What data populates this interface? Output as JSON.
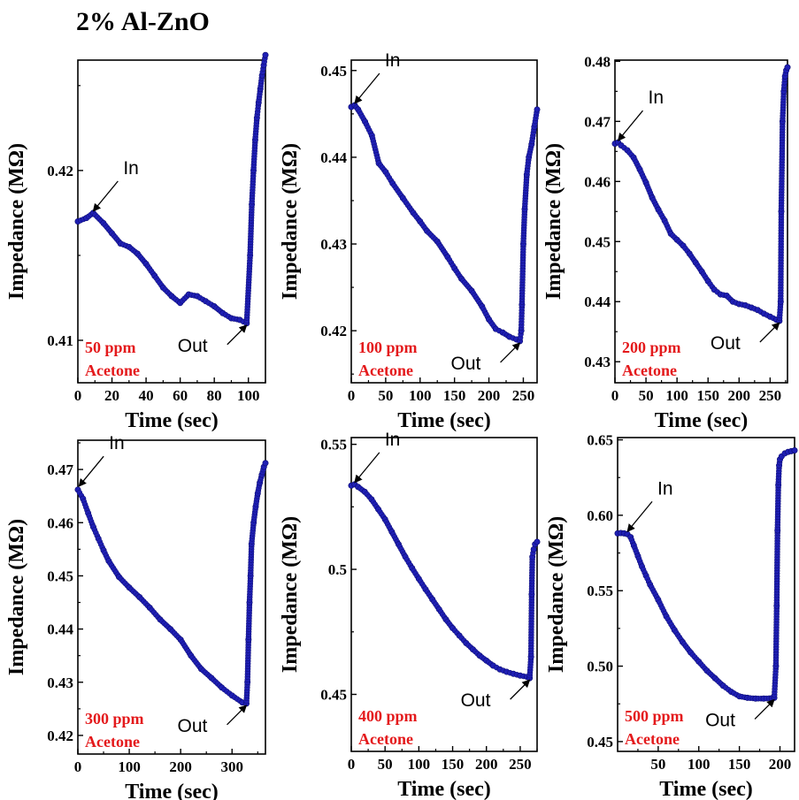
{
  "figure": {
    "title": "2% Al-ZnO"
  },
  "colors": {
    "series": "#1f1fb4",
    "condition_text": "#e41a1c"
  },
  "chart_data": [
    {
      "type": "scatter",
      "xlabel": "Time (sec)",
      "ylabel": "Impedance (MΩ)",
      "xlim": [
        0,
        110
      ],
      "ylim": [
        0.4075,
        0.4265
      ],
      "xticks": [
        0,
        20,
        40,
        60,
        80,
        100
      ],
      "xtick_labels": [
        "0",
        "20",
        "40",
        "60",
        "80",
        "100"
      ],
      "yticks": [
        0.41,
        0.42
      ],
      "ytick_labels": [
        "0.41",
        "0.42"
      ],
      "conditions": [
        "50 ppm",
        "Acetone"
      ],
      "annotations": [
        {
          "text": "In",
          "x": 9,
          "y": 0.4175
        },
        {
          "text": "Out",
          "x": 99,
          "y": 0.411
        }
      ],
      "x": [
        0,
        5,
        9,
        15,
        20,
        25,
        30,
        35,
        40,
        45,
        50,
        55,
        60,
        65,
        70,
        75,
        80,
        85,
        90,
        95,
        99,
        101,
        102,
        103,
        104,
        105,
        106,
        107,
        108,
        109,
        110
      ],
      "y": [
        0.417,
        0.4172,
        0.4175,
        0.4169,
        0.4163,
        0.4157,
        0.4155,
        0.4151,
        0.4145,
        0.4138,
        0.4131,
        0.4126,
        0.4122,
        0.4127,
        0.4126,
        0.4123,
        0.412,
        0.4116,
        0.4113,
        0.4112,
        0.411,
        0.415,
        0.418,
        0.42,
        0.4218,
        0.4231,
        0.424,
        0.4248,
        0.4256,
        0.4262,
        0.4268
      ]
    },
    {
      "type": "scatter",
      "xlabel": "Time (sec)",
      "ylabel": "Impedance (MΩ)",
      "xlim": [
        0,
        270
      ],
      "ylim": [
        0.414,
        0.4512
      ],
      "xticks": [
        0,
        50,
        100,
        150,
        200,
        250
      ],
      "xtick_labels": [
        "0",
        "50",
        "100",
        "150",
        "200",
        "250"
      ],
      "yticks": [
        0.42,
        0.43,
        0.44,
        0.45
      ],
      "ytick_labels": [
        "0.42",
        "0.43",
        "0.44",
        "0.45"
      ],
      "conditions": [
        "100 ppm",
        "Acetone"
      ],
      "annotations": [
        {
          "text": "In",
          "x": 5,
          "y": 0.446
        },
        {
          "text": "Out",
          "x": 245,
          "y": 0.4188
        }
      ],
      "x": [
        0,
        5,
        10,
        20,
        30,
        40,
        50,
        60,
        75,
        90,
        100,
        110,
        125,
        140,
        150,
        160,
        175,
        190,
        200,
        210,
        220,
        230,
        240,
        245,
        247,
        248,
        250,
        252,
        255,
        258,
        262,
        266,
        270
      ],
      "y": [
        0.4458,
        0.446,
        0.4455,
        0.4441,
        0.4425,
        0.4393,
        0.4383,
        0.437,
        0.4353,
        0.4336,
        0.4326,
        0.4315,
        0.4303,
        0.4285,
        0.4272,
        0.426,
        0.4246,
        0.4228,
        0.4213,
        0.4202,
        0.4198,
        0.4193,
        0.419,
        0.4188,
        0.42,
        0.423,
        0.43,
        0.434,
        0.438,
        0.44,
        0.4415,
        0.4435,
        0.4455
      ]
    },
    {
      "type": "scatter",
      "xlabel": "Time (sec)",
      "ylabel": "Impedance (MΩ)",
      "xlim": [
        0,
        278
      ],
      "ylim": [
        0.4265,
        0.4802
      ],
      "xticks": [
        0,
        50,
        100,
        150,
        200,
        250
      ],
      "xtick_labels": [
        "0",
        "50",
        "100",
        "150",
        "200",
        "250"
      ],
      "yticks": [
        0.43,
        0.44,
        0.45,
        0.46,
        0.47,
        0.48
      ],
      "ytick_labels": [
        "0.43",
        "0.44",
        "0.45",
        "0.46",
        "0.47",
        "0.48"
      ],
      "conditions": [
        "200 ppm",
        "Acetone"
      ],
      "annotations": [
        {
          "text": "In",
          "x": 5,
          "y": 0.4665
        },
        {
          "text": "Out",
          "x": 265,
          "y": 0.4368
        }
      ],
      "x": [
        0,
        5,
        10,
        20,
        30,
        40,
        50,
        60,
        70,
        80,
        90,
        100,
        110,
        120,
        130,
        140,
        150,
        160,
        170,
        180,
        190,
        200,
        210,
        220,
        230,
        240,
        250,
        260,
        265,
        267,
        268,
        270,
        272,
        274,
        276,
        278
      ],
      "y": [
        0.4663,
        0.4665,
        0.466,
        0.4652,
        0.464,
        0.462,
        0.4598,
        0.4573,
        0.4553,
        0.4535,
        0.4513,
        0.4503,
        0.4493,
        0.448,
        0.4465,
        0.445,
        0.4434,
        0.442,
        0.4412,
        0.441,
        0.44,
        0.4396,
        0.4394,
        0.439,
        0.4386,
        0.438,
        0.4375,
        0.437,
        0.4368,
        0.44,
        0.455,
        0.47,
        0.475,
        0.4775,
        0.4785,
        0.479
      ]
    },
    {
      "type": "scatter",
      "xlabel": "Time (sec)",
      "ylabel": "Impedance (MΩ)",
      "xlim": [
        0,
        365
      ],
      "ylim": [
        0.4165,
        0.4755
      ],
      "xticks": [
        0,
        100,
        200,
        300
      ],
      "xtick_labels": [
        "0",
        "100",
        "200",
        "300"
      ],
      "yticks": [
        0.42,
        0.43,
        0.44,
        0.45,
        0.46,
        0.47
      ],
      "ytick_labels": [
        "0.42",
        "0.43",
        "0.44",
        "0.45",
        "0.46",
        "0.47"
      ],
      "conditions": [
        "300 ppm",
        "Acetone"
      ],
      "annotations": [
        {
          "text": "In",
          "x": 2,
          "y": 0.4665
        },
        {
          "text": "Out",
          "x": 328,
          "y": 0.426
        }
      ],
      "x": [
        0,
        10,
        20,
        30,
        40,
        50,
        60,
        80,
        100,
        120,
        140,
        160,
        180,
        200,
        220,
        240,
        260,
        280,
        300,
        320,
        328,
        330,
        332,
        334,
        336,
        338,
        342,
        346,
        350,
        354,
        358,
        362,
        365
      ],
      "y": [
        0.4662,
        0.4645,
        0.4618,
        0.4592,
        0.457,
        0.4548,
        0.4528,
        0.4498,
        0.4478,
        0.446,
        0.444,
        0.4418,
        0.44,
        0.438,
        0.435,
        0.4325,
        0.4308,
        0.429,
        0.4275,
        0.4262,
        0.426,
        0.43,
        0.438,
        0.445,
        0.45,
        0.456,
        0.46,
        0.463,
        0.4655,
        0.4675,
        0.469,
        0.4705,
        0.4712
      ]
    },
    {
      "type": "scatter",
      "xlabel": "Time (sec)",
      "ylabel": "Impedance (MΩ)",
      "xlim": [
        0,
        275
      ],
      "ylim": [
        0.4272,
        0.5527
      ],
      "xticks": [
        0,
        50,
        100,
        150,
        200,
        250
      ],
      "xtick_labels": [
        "0",
        "50",
        "100",
        "150",
        "200",
        "250"
      ],
      "yticks": [
        0.45,
        0.5,
        0.55
      ],
      "ytick_labels": [
        "0.45",
        "0.5",
        "0.55"
      ],
      "conditions": [
        "400 ppm",
        "Acetone"
      ],
      "annotations": [
        {
          "text": "In",
          "x": 5,
          "y": 0.534
        },
        {
          "text": "Out",
          "x": 264,
          "y": 0.4565
        }
      ],
      "x": [
        0,
        5,
        10,
        20,
        30,
        40,
        50,
        60,
        70,
        80,
        90,
        100,
        110,
        120,
        130,
        140,
        150,
        160,
        170,
        180,
        190,
        200,
        210,
        220,
        230,
        240,
        250,
        260,
        264,
        266,
        267,
        268,
        270,
        272,
        275
      ],
      "y": [
        0.5335,
        0.534,
        0.533,
        0.531,
        0.528,
        0.524,
        0.52,
        0.515,
        0.51,
        0.505,
        0.5005,
        0.4962,
        0.492,
        0.488,
        0.484,
        0.48,
        0.4765,
        0.4735,
        0.4705,
        0.468,
        0.4655,
        0.4635,
        0.4615,
        0.46,
        0.459,
        0.4582,
        0.4575,
        0.457,
        0.4565,
        0.465,
        0.49,
        0.505,
        0.508,
        0.51,
        0.511
      ]
    },
    {
      "type": "scatter",
      "xlabel": "Time (sec)",
      "ylabel": "Impedance (MΩ)",
      "xlim": [
        0,
        218
      ],
      "ylim": [
        0.4435,
        0.6515
      ],
      "xticks": [
        50,
        100,
        150,
        200
      ],
      "xtick_labels": [
        "50",
        "100",
        "150",
        "200"
      ],
      "yticks": [
        0.45,
        0.5,
        0.55,
        0.6,
        0.65
      ],
      "ytick_labels": [
        "0.45",
        "0.50",
        "0.55",
        "0.60",
        "0.65"
      ],
      "conditions": [
        "500 ppm",
        "Acetone"
      ],
      "annotations": [
        {
          "text": "In",
          "x": 12,
          "y": 0.588
        },
        {
          "text": "Out",
          "x": 193,
          "y": 0.479
        }
      ],
      "x": [
        0,
        4,
        8,
        12,
        16,
        20,
        25,
        30,
        35,
        40,
        50,
        60,
        70,
        80,
        90,
        100,
        110,
        120,
        130,
        140,
        150,
        160,
        170,
        180,
        190,
        193,
        195,
        196,
        197,
        198,
        199,
        200,
        202,
        206,
        210,
        214,
        218
      ],
      "y": [
        0.588,
        0.5882,
        0.588,
        0.5875,
        0.5855,
        0.58,
        0.573,
        0.566,
        0.56,
        0.554,
        0.544,
        0.533,
        0.524,
        0.516,
        0.509,
        0.503,
        0.497,
        0.492,
        0.487,
        0.483,
        0.48,
        0.479,
        0.4785,
        0.4785,
        0.4788,
        0.479,
        0.5,
        0.54,
        0.59,
        0.62,
        0.633,
        0.637,
        0.639,
        0.641,
        0.642,
        0.6425,
        0.643
      ]
    }
  ]
}
